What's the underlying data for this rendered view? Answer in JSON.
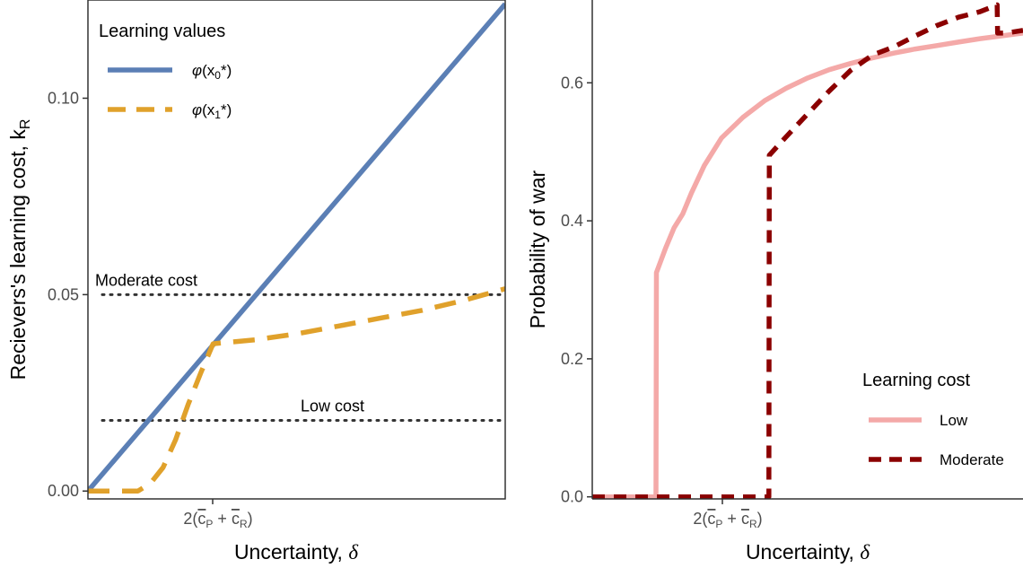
{
  "chart_data": [
    {
      "type": "line",
      "panel": "left",
      "xlabel_text": "Uncertainty, ",
      "xlabel_symbol": "δ",
      "ylabel_text": "Recievers's learning cost, k",
      "ylabel_sub": "R",
      "xlim": [
        0,
        1
      ],
      "ylim": [
        -0.002,
        0.125
      ],
      "x_ticks": [
        {
          "value": 0.3,
          "label": {
            "pre": "2(",
            "c1": "c",
            "s1": "P",
            "plus": " + ",
            "c2": "c",
            "s2": "R",
            "post": ")"
          }
        }
      ],
      "y_ticks": [
        {
          "value": 0.0,
          "label": "0.00"
        },
        {
          "value": 0.05,
          "label": "0.05"
        },
        {
          "value": 0.1,
          "label": "0.10"
        }
      ],
      "grid": false,
      "legend": {
        "title": "Learning values",
        "position": "top-left",
        "entries": [
          {
            "label": {
              "phi": "φ",
              "open": "(x",
              "sub": "0",
              "close": "*)"
            },
            "color": "#5b7fb5",
            "dash": "solid"
          },
          {
            "label": {
              "phi": "φ",
              "open": "(x",
              "sub": "1",
              "close": "*)"
            },
            "color": "#e0a12b",
            "dash": "dashed"
          }
        ]
      },
      "hlines": [
        {
          "y": 0.05,
          "label": "Moderate cost",
          "style": "dotted",
          "color": "#333333"
        },
        {
          "y": 0.018,
          "label": "Low cost",
          "style": "dotted",
          "color": "#333333"
        }
      ],
      "series": [
        {
          "color": "#5b7fb5",
          "dash": "solid",
          "x": [
            0.0,
            1.0
          ],
          "y": [
            0.0,
            0.124
          ]
        },
        {
          "color": "#e0a12b",
          "dash": "dashed",
          "x": [
            0.0,
            0.06,
            0.12,
            0.15,
            0.18,
            0.21,
            0.24,
            0.27,
            0.3,
            0.4,
            0.5,
            0.6,
            0.7,
            0.8,
            0.9,
            0.95,
            1.0
          ],
          "y": [
            0.0,
            0.0,
            0.0,
            0.002,
            0.006,
            0.013,
            0.022,
            0.03,
            0.0375,
            0.0385,
            0.04,
            0.042,
            0.044,
            0.046,
            0.0485,
            0.05,
            0.0515
          ]
        }
      ]
    },
    {
      "type": "line",
      "panel": "right",
      "xlabel_text": "Uncertainty, ",
      "xlabel_symbol": "δ",
      "ylabel_text": "Probability of war",
      "xlim": [
        0,
        1
      ],
      "ylim": [
        -0.003,
        0.72
      ],
      "x_ticks": [
        {
          "value": 0.3,
          "label": {
            "pre": "2(",
            "c1": "c",
            "s1": "P",
            "plus": " + ",
            "c2": "c",
            "s2": "R",
            "post": ")"
          }
        }
      ],
      "y_ticks": [
        {
          "value": 0.0,
          "label": "0.0"
        },
        {
          "value": 0.2,
          "label": "0.2"
        },
        {
          "value": 0.4,
          "label": "0.4"
        },
        {
          "value": 0.6,
          "label": "0.6"
        }
      ],
      "grid": false,
      "legend": {
        "title": "Learning cost",
        "position": "bottom-right",
        "entries": [
          {
            "label": "Low",
            "color": "#f4a9a8",
            "dash": "solid"
          },
          {
            "label": "Moderate",
            "color": "#8b0000",
            "dash": "dashed"
          }
        ]
      },
      "series": [
        {
          "name": "Low",
          "color": "#f4a9a8",
          "dash": "solid",
          "x": [
            0.0,
            0.148,
            0.149,
            0.17,
            0.19,
            0.21,
            0.23,
            0.26,
            0.3,
            0.35,
            0.4,
            0.45,
            0.5,
            0.55,
            0.6,
            0.65,
            0.7,
            0.75,
            0.8,
            0.85,
            0.9,
            0.95,
            1.0
          ],
          "y": [
            0.0,
            0.0,
            0.325,
            0.36,
            0.39,
            0.41,
            0.44,
            0.48,
            0.52,
            0.55,
            0.574,
            0.592,
            0.607,
            0.619,
            0.628,
            0.636,
            0.643,
            0.649,
            0.654,
            0.659,
            0.664,
            0.668,
            0.672
          ]
        },
        {
          "name": "Moderate",
          "color": "#8b0000",
          "dash": "dashed",
          "x": [
            0.0,
            0.41,
            0.411,
            0.44,
            0.5,
            0.55,
            0.6,
            0.65,
            0.7,
            0.75,
            0.8,
            0.85,
            0.9,
            0.94,
            0.941,
            0.96,
            1.0
          ],
          "y": [
            0.0,
            0.0,
            0.495,
            0.515,
            0.555,
            0.588,
            0.618,
            0.64,
            0.652,
            0.668,
            0.683,
            0.695,
            0.703,
            0.713,
            0.672,
            0.672,
            0.676
          ]
        }
      ]
    }
  ]
}
